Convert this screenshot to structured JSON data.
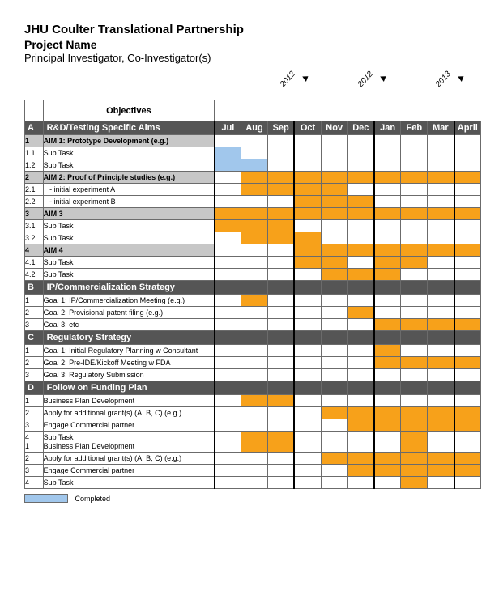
{
  "header": {
    "title": "JHU Coulter Translational Partnership",
    "project": "Project Name",
    "pi": "Principal Investigator, Co-Investigator(s)"
  },
  "objectives_label": "Objectives",
  "completed_label": "Completed",
  "colors": {
    "section_bg": "#555555",
    "section_fg": "#ffffff",
    "aim_bg": "#c7c7c7",
    "bar_orange": "#f7a11a",
    "bar_blue": "#a1c7ec",
    "grid": "#6b6b6b"
  },
  "timeline": {
    "months": [
      "Jul",
      "Aug",
      "Sep",
      "Oct",
      "Nov",
      "Dec",
      "Jan",
      "Feb",
      "Mar",
      "April"
    ],
    "quarter_separators": [
      0,
      3,
      6,
      9
    ],
    "year_labels": [
      {
        "text": "2012",
        "after_month_index": 2
      },
      {
        "text": "2012",
        "after_month_index": 5
      },
      {
        "text": "2013",
        "after_month_index": 8
      }
    ]
  },
  "rows": [
    {
      "type": "section",
      "id": "A",
      "name": "R&D/Testing Specific Aims"
    },
    {
      "type": "aim",
      "id": "1",
      "name": "AIM 1: Prototype Development (e.g.)",
      "bars": []
    },
    {
      "type": "task",
      "id": "1.1",
      "name": "Sub Task",
      "bar_color": "blue",
      "bars": [
        [
          0,
          0
        ]
      ]
    },
    {
      "type": "task",
      "id": "1.2",
      "name": "Sub Task",
      "bar_color": "blue",
      "bars": [
        [
          0,
          1
        ]
      ]
    },
    {
      "type": "aim",
      "id": "2",
      "name": "AIM 2: Proof of Principle studies (e.g.)",
      "bar_color": "orange",
      "bars": [
        [
          1,
          9
        ]
      ]
    },
    {
      "type": "task",
      "id": "2.1",
      "name": "   - initial experiment A",
      "bar_color": "orange",
      "bars": [
        [
          1,
          4
        ]
      ]
    },
    {
      "type": "task",
      "id": "2.2",
      "name": "   - initial experiment B",
      "bar_color": "orange",
      "bars": [
        [
          3,
          5
        ]
      ]
    },
    {
      "type": "aim",
      "id": "3",
      "name": "AIM 3",
      "bar_color": "orange",
      "bars": [
        [
          0,
          9
        ]
      ]
    },
    {
      "type": "task",
      "id": "3.1",
      "name": "Sub Task",
      "bar_color": "orange",
      "bars": [
        [
          0,
          2
        ]
      ]
    },
    {
      "type": "task",
      "id": "3.2",
      "name": "Sub Task",
      "bar_color": "orange",
      "bars": [
        [
          1,
          3
        ]
      ]
    },
    {
      "type": "aim",
      "id": "4",
      "name": "AIM 4",
      "bar_color": "orange",
      "bars": [
        [
          3,
          9
        ]
      ]
    },
    {
      "type": "task",
      "id": "4.1",
      "name": "Sub Task",
      "bar_color": "orange",
      "bars": [
        [
          3,
          4
        ],
        [
          6,
          7
        ]
      ]
    },
    {
      "type": "task",
      "id": "4.2",
      "name": "Sub Task",
      "bar_color": "orange",
      "bars": [
        [
          4,
          6
        ]
      ]
    },
    {
      "type": "section",
      "id": "B",
      "name": "IP/Commercialization Strategy"
    },
    {
      "type": "task",
      "id": "1",
      "name": "Goal 1: IP/Commercialization Meeting (e.g.)",
      "bar_color": "orange",
      "bars": [
        [
          1,
          1
        ]
      ]
    },
    {
      "type": "task",
      "id": "2",
      "name": "Goal 2: Provisional patent filing (e.g.)",
      "bar_color": "orange",
      "bars": [
        [
          5,
          5
        ]
      ]
    },
    {
      "type": "task",
      "id": "3",
      "name": "Goal 3: etc",
      "bar_color": "orange",
      "bars": [
        [
          6,
          9
        ]
      ]
    },
    {
      "type": "section",
      "id": "C",
      "name": "Regulatory Strategy"
    },
    {
      "type": "task",
      "id": "1",
      "name": "Goal 1: Initial Regulatory Planning w Consultant",
      "bar_color": "orange",
      "bars": [
        [
          6,
          6
        ]
      ]
    },
    {
      "type": "task",
      "id": "2",
      "name": "Goal 2: Pre-IDE/Kickoff Meeting w FDA",
      "bar_color": "orange",
      "bars": [
        [
          6,
          9
        ]
      ]
    },
    {
      "type": "task",
      "id": "3",
      "name": "Goal 3: Regulatory Submission",
      "bars": []
    },
    {
      "type": "section",
      "id": "D",
      "name": "Follow on Funding Plan"
    },
    {
      "type": "task",
      "id": "1",
      "name": "Business Plan Development",
      "bar_color": "orange",
      "bars": [
        [
          1,
          2
        ]
      ]
    },
    {
      "type": "task",
      "id": "2",
      "name": "Apply for additional grant(s) (A, B, C) (e.g.)",
      "bar_color": "orange",
      "bars": [
        [
          4,
          9
        ]
      ]
    },
    {
      "type": "task",
      "id": "3",
      "name": "Engage Commercial partner",
      "bar_color": "orange",
      "bars": [
        [
          5,
          9
        ]
      ]
    },
    {
      "type": "task2",
      "id": "4\n1",
      "name": "Sub Task\nBusiness Plan Development",
      "bar_color": "orange",
      "bars": [
        [
          1,
          2
        ],
        [
          7,
          7
        ]
      ]
    },
    {
      "type": "task",
      "id": "2",
      "name": "Apply for additional grant(s) (A, B, C) (e.g.)",
      "bar_color": "orange",
      "bars": [
        [
          4,
          9
        ]
      ]
    },
    {
      "type": "task",
      "id": "3",
      "name": "Engage Commercial partner",
      "bar_color": "orange",
      "bars": [
        [
          5,
          9
        ]
      ]
    },
    {
      "type": "task",
      "id": "4",
      "name": "Sub Task",
      "bar_color": "orange",
      "bars": [
        [
          7,
          7
        ]
      ]
    }
  ]
}
